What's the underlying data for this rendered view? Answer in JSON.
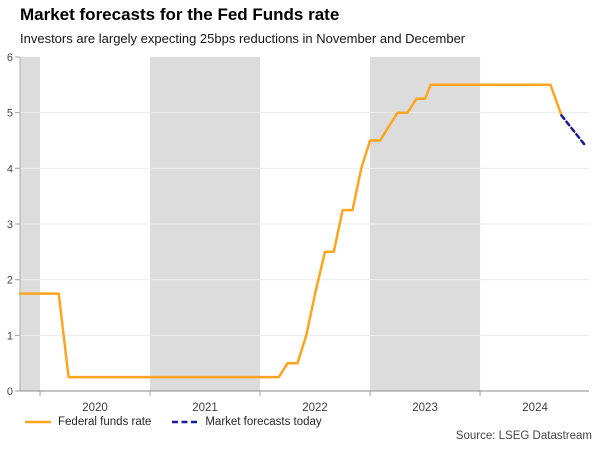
{
  "header": {
    "title": "Market forecasts for the Fed Funds rate",
    "subtitle": "Investors are largely expecting 25bps reductions in November and December"
  },
  "source": "Source: LSEG Datastream",
  "colors": {
    "fed_funds_line": "#FFA41E",
    "forecast_line": "#1A1A9C",
    "year_band": "#DCDCDC",
    "gridline": "#ECECEC",
    "x_axis": "#8A8A8A",
    "y_axis": "#ADADAD",
    "tick": "#A6A6A6"
  },
  "chart_data": {
    "type": "line",
    "title": "Market forecasts for the Fed Funds rate",
    "subtitle": "Investors are largely expecting 25bps reductions in November and December",
    "xlabel": "",
    "ylabel": "",
    "xlim": [
      2019.818,
      2024.99
    ],
    "ylim": [
      0,
      6
    ],
    "yticks": [
      0,
      1,
      2,
      3,
      4,
      5,
      6
    ],
    "xticks": [
      2020,
      2021,
      2022,
      2023,
      2024
    ],
    "xtick_labels": [
      "2020",
      "2021",
      "2022",
      "2023",
      "2024"
    ],
    "grid": "horizontal",
    "legend_position": "bottom-left",
    "shaded_bands": [
      [
        2019.818,
        2020
      ],
      [
        2021,
        2022
      ],
      [
        2023,
        2024
      ]
    ],
    "series": [
      {
        "name": "Federal funds rate",
        "style": "solid",
        "color": "#FFA41E",
        "points": [
          [
            2019.818,
            1.75
          ],
          [
            2020.17,
            1.75
          ],
          [
            2020.26,
            0.25
          ],
          [
            2022.17,
            0.25
          ],
          [
            2022.25,
            0.5
          ],
          [
            2022.34,
            0.5
          ],
          [
            2022.42,
            1.0
          ],
          [
            2022.5,
            1.75
          ],
          [
            2022.59,
            2.5
          ],
          [
            2022.67,
            2.5
          ],
          [
            2022.75,
            3.25
          ],
          [
            2022.84,
            3.25
          ],
          [
            2022.92,
            4.0
          ],
          [
            2023.0,
            4.5
          ],
          [
            2023.09,
            4.5
          ],
          [
            2023.17,
            4.75
          ],
          [
            2023.25,
            5.0
          ],
          [
            2023.34,
            5.0
          ],
          [
            2023.42,
            5.25
          ],
          [
            2023.5,
            5.25
          ],
          [
            2023.55,
            5.5
          ],
          [
            2024.64,
            5.5
          ],
          [
            2024.74,
            4.95
          ]
        ]
      },
      {
        "name": "Market forecasts today",
        "style": "dashed",
        "color": "#1A1A9C",
        "points": [
          [
            2024.74,
            4.95
          ],
          [
            2024.96,
            4.4
          ]
        ]
      }
    ]
  },
  "legend": {
    "items": [
      {
        "label": "Federal funds rate",
        "color": "#FFA41E",
        "style": "solid"
      },
      {
        "label": "Market forecasts today",
        "color": "#1A1A9C",
        "style": "dashed"
      }
    ]
  }
}
